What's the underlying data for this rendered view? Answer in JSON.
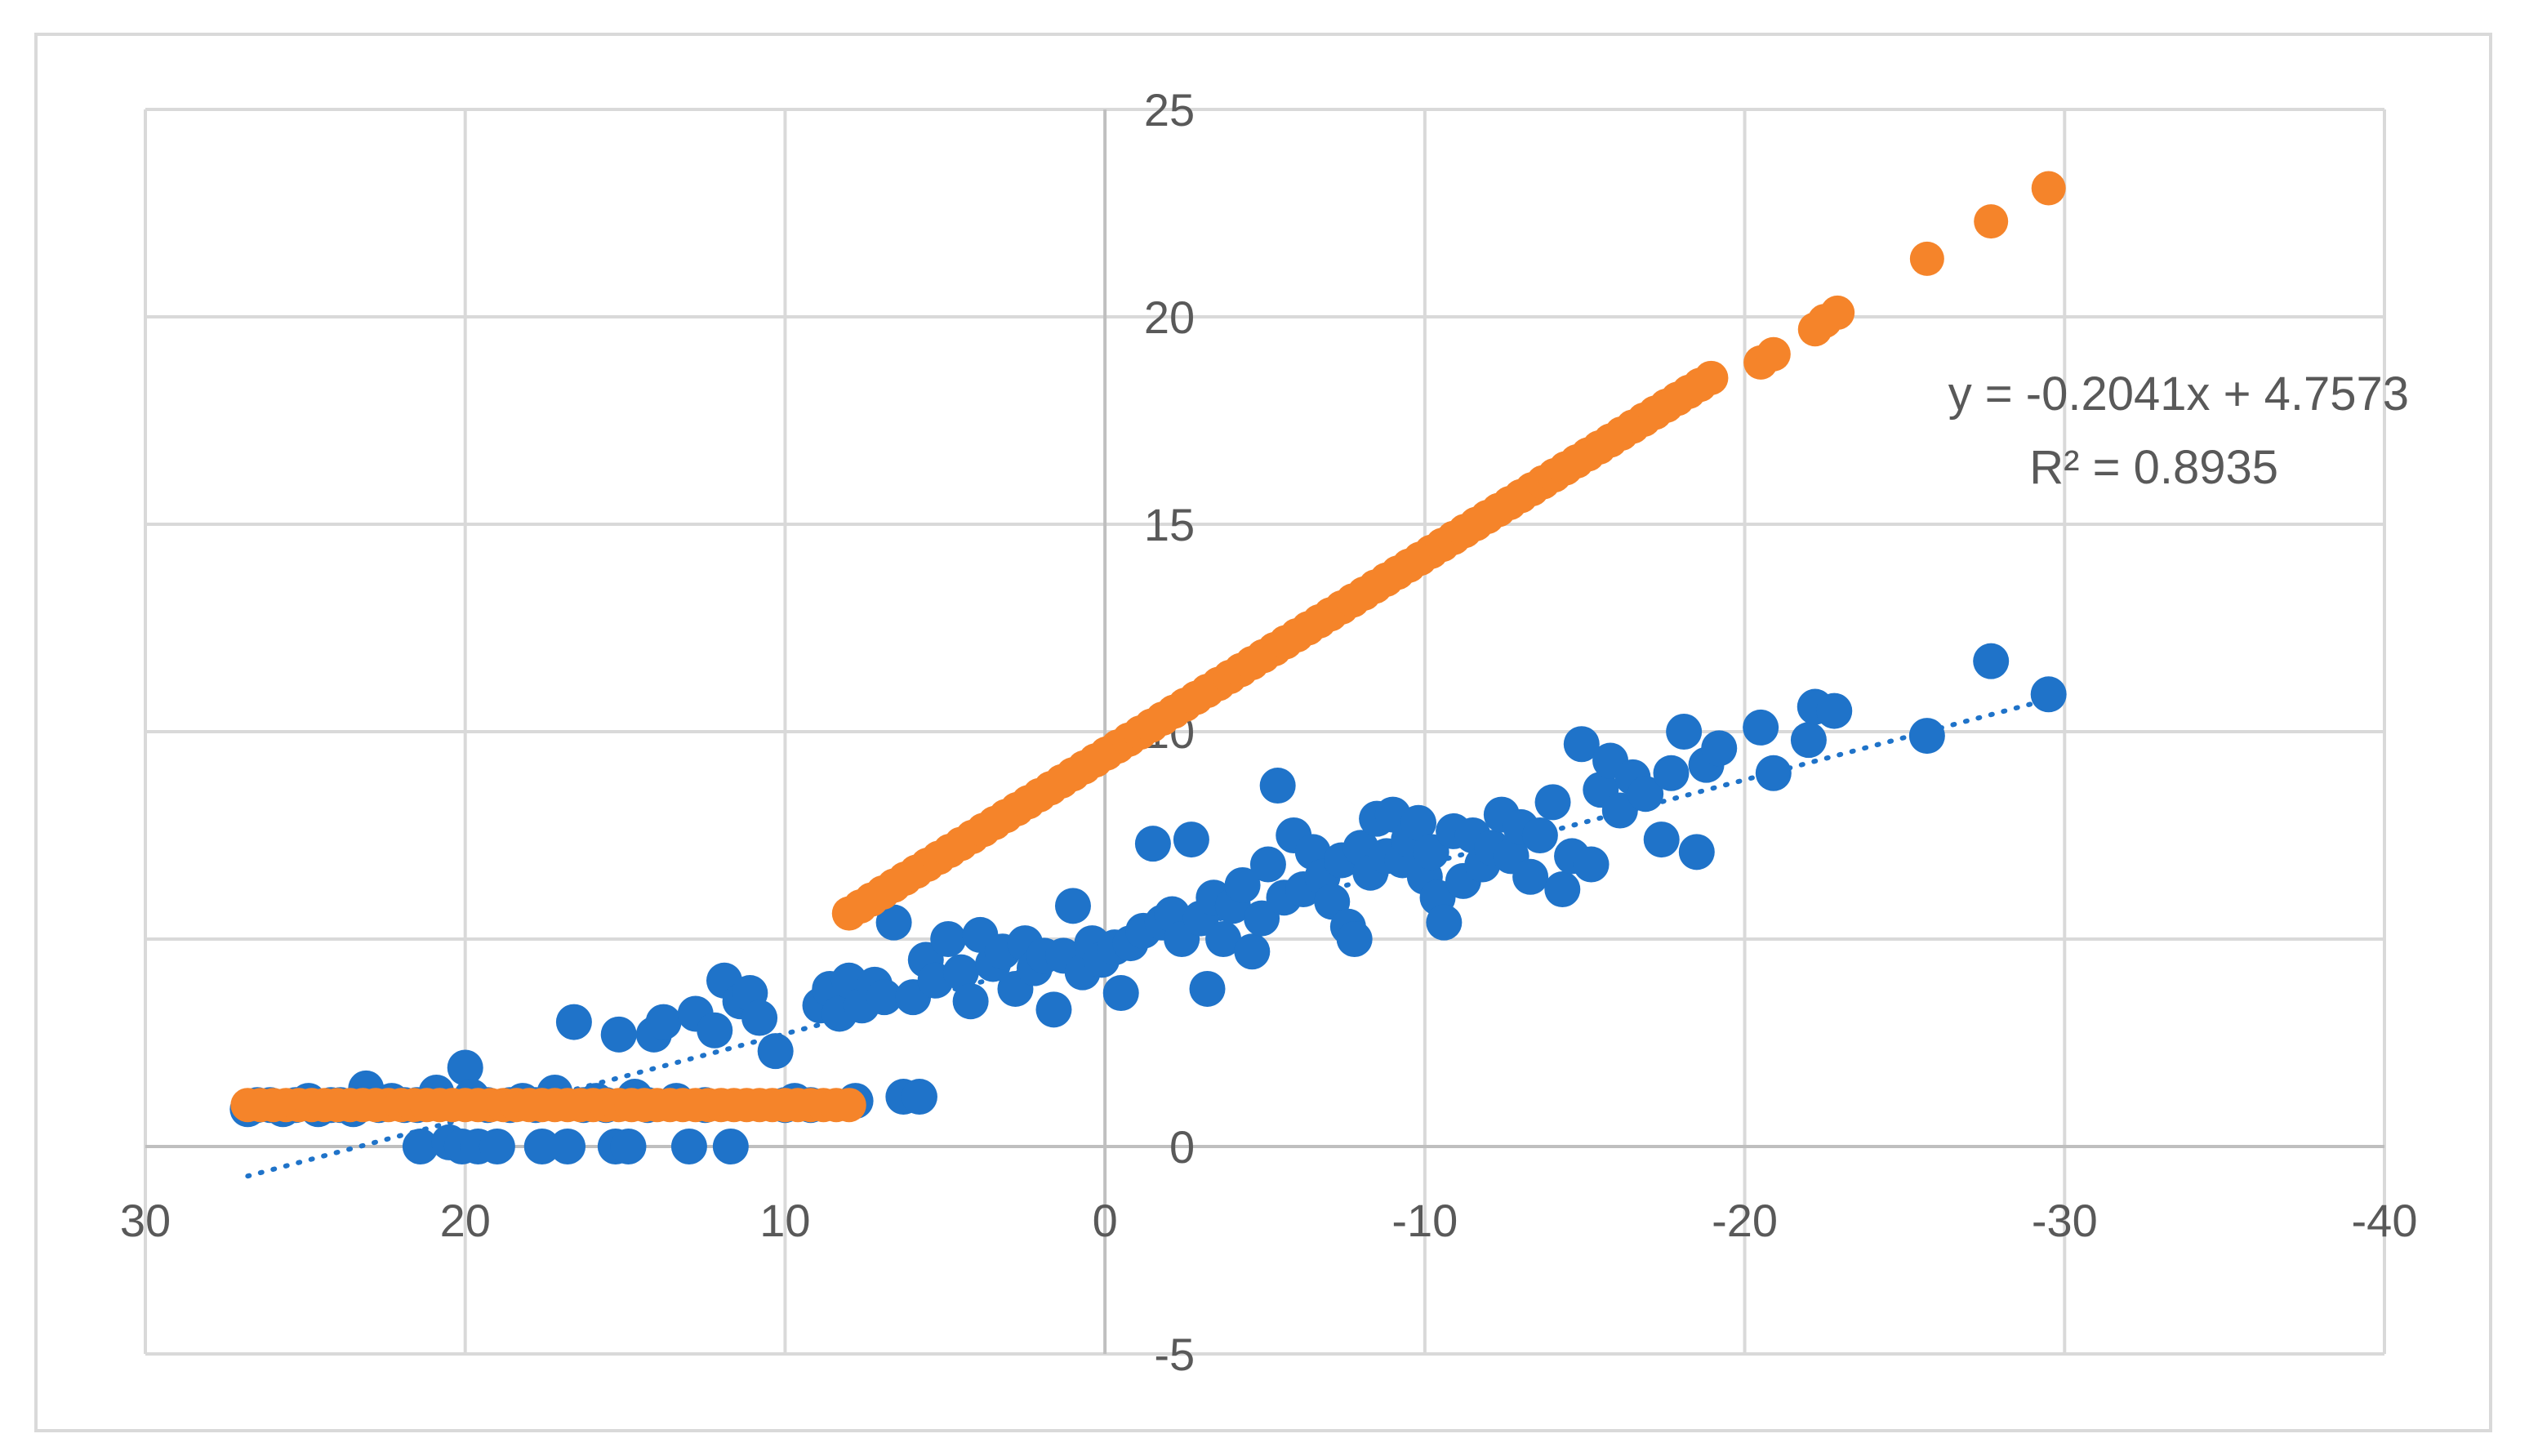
{
  "chart_data": {
    "type": "scatter",
    "x_axis": {
      "min": -40,
      "max": 30,
      "reversed": true,
      "ticks": [
        30,
        20,
        10,
        0,
        -10,
        -20,
        -30,
        -40
      ],
      "tick_labels": [
        "30",
        "20",
        "10",
        "0",
        "-10",
        "-20",
        "-30",
        "-40"
      ]
    },
    "y_axis": {
      "min": -5,
      "max": 25,
      "ticks": [
        25,
        20,
        15,
        10,
        5,
        0,
        -5
      ],
      "tick_labels": [
        "25",
        "20",
        "15",
        "10",
        "5",
        "0",
        "-5"
      ]
    },
    "grid": true,
    "colors": {
      "blue": "#1f73c9",
      "orange": "#f5842a",
      "grid": "#d9d9d9",
      "text": "#595959"
    },
    "series": [
      {
        "color": "#1f73c9",
        "points": [
          [
            26.8,
            0.9
          ],
          [
            26.5,
            1.0
          ],
          [
            26.1,
            1.0
          ],
          [
            25.7,
            0.9
          ],
          [
            25.3,
            1.0
          ],
          [
            24.9,
            1.1
          ],
          [
            24.6,
            0.9
          ],
          [
            24.2,
            1.0
          ],
          [
            23.9,
            1.0
          ],
          [
            23.5,
            0.9
          ],
          [
            23.1,
            1.4
          ],
          [
            22.7,
            1.0
          ],
          [
            22.3,
            1.1
          ],
          [
            21.9,
            1.0
          ],
          [
            21.5,
            1.0
          ],
          [
            21.4,
            0.0
          ],
          [
            20.9,
            1.3
          ],
          [
            20.5,
            0.1
          ],
          [
            20.1,
            0.0
          ],
          [
            20.0,
            1.9
          ],
          [
            19.8,
            1.2
          ],
          [
            19.6,
            0.0
          ],
          [
            19.3,
            1.0
          ],
          [
            19.0,
            0.0
          ],
          [
            18.6,
            1.0
          ],
          [
            18.2,
            1.1
          ],
          [
            17.8,
            1.0
          ],
          [
            17.6,
            0.0
          ],
          [
            17.2,
            1.3
          ],
          [
            16.8,
            0.0
          ],
          [
            16.6,
            3.0
          ],
          [
            16.3,
            1.0
          ],
          [
            15.9,
            1.1
          ],
          [
            15.6,
            1.0
          ],
          [
            15.3,
            0.0
          ],
          [
            15.2,
            2.7
          ],
          [
            14.9,
            0.0
          ],
          [
            14.7,
            1.2
          ],
          [
            14.3,
            1.0
          ],
          [
            14.1,
            2.7
          ],
          [
            13.8,
            3.0
          ],
          [
            13.4,
            1.1
          ],
          [
            13.0,
            0.0
          ],
          [
            12.8,
            3.2
          ],
          [
            12.5,
            1.0
          ],
          [
            12.2,
            2.8
          ],
          [
            11.9,
            4.0
          ],
          [
            11.7,
            0.0
          ],
          [
            11.4,
            3.5
          ],
          [
            11.1,
            3.7
          ],
          [
            10.8,
            3.1
          ],
          [
            10.3,
            2.3
          ],
          [
            10.0,
            1.0
          ],
          [
            9.7,
            1.1
          ],
          [
            9.2,
            1.0
          ],
          [
            8.9,
            3.4
          ],
          [
            8.6,
            3.8
          ],
          [
            8.3,
            3.2
          ],
          [
            8.0,
            4.0
          ],
          [
            7.8,
            1.1
          ],
          [
            7.6,
            3.4
          ],
          [
            7.2,
            3.9
          ],
          [
            6.9,
            3.6
          ],
          [
            6.6,
            5.4
          ],
          [
            6.3,
            1.2
          ],
          [
            6.0,
            3.6
          ],
          [
            5.8,
            1.2
          ],
          [
            5.6,
            4.5
          ],
          [
            5.3,
            4.0
          ],
          [
            4.9,
            5.0
          ],
          [
            4.5,
            4.2
          ],
          [
            4.2,
            3.5
          ],
          [
            3.9,
            5.1
          ],
          [
            3.5,
            4.4
          ],
          [
            3.2,
            4.7
          ],
          [
            2.8,
            3.8
          ],
          [
            2.5,
            4.9
          ],
          [
            2.2,
            4.3
          ],
          [
            1.9,
            4.6
          ],
          [
            1.6,
            3.3
          ],
          [
            1.3,
            4.6
          ],
          [
            1.0,
            5.8
          ],
          [
            0.7,
            4.2
          ],
          [
            0.4,
            4.9
          ],
          [
            0.1,
            4.5
          ],
          [
            -0.3,
            4.8
          ],
          [
            -0.5,
            3.7
          ],
          [
            -0.8,
            4.9
          ],
          [
            -1.2,
            5.2
          ],
          [
            -1.5,
            7.3
          ],
          [
            -1.8,
            5.4
          ],
          [
            -2.1,
            5.6
          ],
          [
            -2.4,
            5.0
          ],
          [
            -2.7,
            7.4
          ],
          [
            -3.0,
            5.5
          ],
          [
            -3.2,
            3.8
          ],
          [
            -3.4,
            6.0
          ],
          [
            -3.7,
            5.0
          ],
          [
            -4.0,
            5.8
          ],
          [
            -4.3,
            6.3
          ],
          [
            -4.6,
            4.7
          ],
          [
            -4.9,
            5.5
          ],
          [
            -5.1,
            6.8
          ],
          [
            -5.4,
            8.7
          ],
          [
            -5.6,
            6.0
          ],
          [
            -5.9,
            7.5
          ],
          [
            -6.2,
            6.2
          ],
          [
            -6.5,
            7.1
          ],
          [
            -6.8,
            6.5
          ],
          [
            -7.1,
            5.9
          ],
          [
            -7.4,
            6.9
          ],
          [
            -7.6,
            5.3
          ],
          [
            -7.8,
            5.0
          ],
          [
            -8.0,
            7.2
          ],
          [
            -8.3,
            6.6
          ],
          [
            -8.5,
            7.9
          ],
          [
            -8.8,
            7.0
          ],
          [
            -9.0,
            8.0
          ],
          [
            -9.3,
            6.9
          ],
          [
            -9.5,
            7.4
          ],
          [
            -9.8,
            7.8
          ],
          [
            -10.0,
            6.5
          ],
          [
            -10.2,
            7.1
          ],
          [
            -10.4,
            6.0
          ],
          [
            -10.6,
            5.4
          ],
          [
            -10.9,
            7.6
          ],
          [
            -11.2,
            6.4
          ],
          [
            -11.5,
            7.5
          ],
          [
            -11.8,
            6.8
          ],
          [
            -12.1,
            7.2
          ],
          [
            -12.4,
            8.0
          ],
          [
            -12.7,
            7.0
          ],
          [
            -13.0,
            7.7
          ],
          [
            -13.3,
            6.5
          ],
          [
            -13.6,
            7.5
          ],
          [
            -14.0,
            8.3
          ],
          [
            -14.3,
            6.2
          ],
          [
            -14.6,
            7.0
          ],
          [
            -14.9,
            9.7
          ],
          [
            -15.2,
            6.8
          ],
          [
            -15.5,
            8.6
          ],
          [
            -15.8,
            9.3
          ],
          [
            -16.1,
            8.1
          ],
          [
            -16.5,
            8.9
          ],
          [
            -16.9,
            8.5
          ],
          [
            -17.4,
            7.4
          ],
          [
            -17.7,
            9.0
          ],
          [
            -18.1,
            10.0
          ],
          [
            -18.5,
            7.1
          ],
          [
            -18.8,
            9.2
          ],
          [
            -19.2,
            9.6
          ],
          [
            -20.5,
            10.1
          ],
          [
            -20.9,
            9.0
          ],
          [
            -22.0,
            9.8
          ],
          [
            -22.2,
            10.6
          ],
          [
            -22.8,
            10.5
          ],
          [
            -25.7,
            9.9
          ],
          [
            -27.7,
            11.7
          ],
          [
            -29.5,
            10.9
          ]
        ]
      },
      {
        "color": "#f5842a",
        "flat_segment": {
          "x_from": 26.8,
          "x_to": 8.0,
          "y": 1.0
        },
        "linear_segment": {
          "x_from": 8.0,
          "x_to": -19.2,
          "slope": -0.479,
          "intercept": 9.45
        },
        "points": [
          [
            -20.5,
            18.9
          ],
          [
            -20.9,
            19.1
          ],
          [
            -22.2,
            19.7
          ],
          [
            -22.5,
            19.9
          ],
          [
            -22.9,
            20.1
          ],
          [
            -25.7,
            21.4
          ],
          [
            -27.7,
            22.3
          ],
          [
            -29.5,
            23.1
          ]
        ]
      }
    ],
    "trendline": {
      "series_color": "#1f73c9",
      "style": "dotted",
      "slope": -0.2041,
      "intercept": 4.7573,
      "x_from": 26.8,
      "x_to": -29.5
    },
    "annotation": {
      "equation": "y = -0.2041x + 4.7573",
      "r_squared": "R² = 0.8935"
    }
  }
}
